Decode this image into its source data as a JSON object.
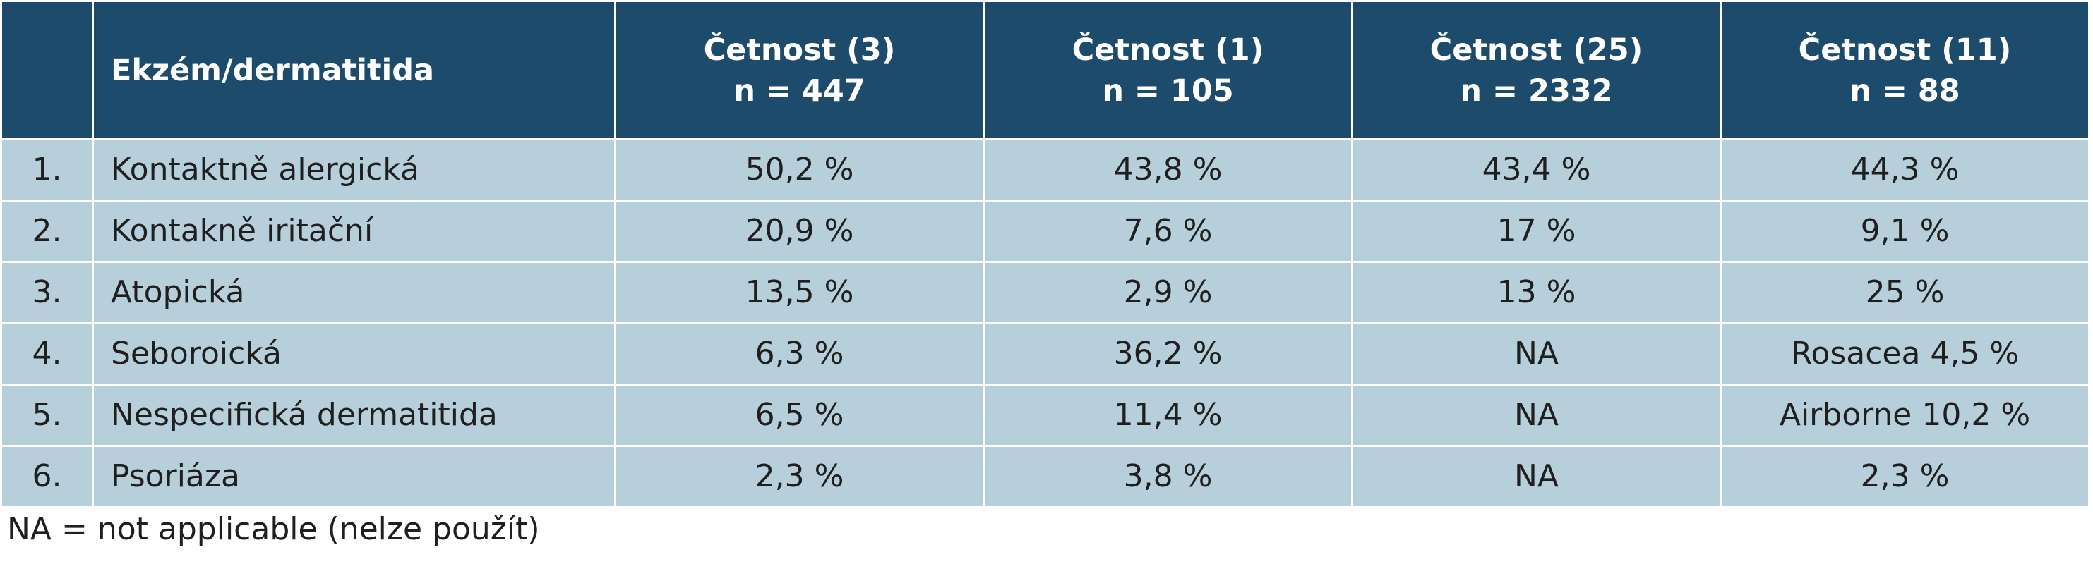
{
  "colors": {
    "header_bg": "#1d4b6c",
    "header_text": "#ffffff",
    "row_bg": "#b7cedb",
    "row_text": "#1f1f1f",
    "grid_line": "#ffffff"
  },
  "table": {
    "header": {
      "index": "",
      "name": "Ekzém/dermatitida",
      "columns": [
        {
          "line1": "Četnost (3)",
          "line2": "n = 447"
        },
        {
          "line1": "Četnost (1)",
          "line2": "n = 105"
        },
        {
          "line1": "Četnost (25)",
          "line2": "n = 2332"
        },
        {
          "line1": "Četnost (11)",
          "line2": "n = 88"
        }
      ]
    },
    "rows": [
      {
        "index": "1.",
        "name": "Kontaktně alergická",
        "values": [
          "50,2 %",
          "43,8 %",
          "43,4 %",
          "44,3 %"
        ]
      },
      {
        "index": "2.",
        "name": "Kontakně iritační",
        "values": [
          "20,9 %",
          "7,6 %",
          "17 %",
          "9,1 %"
        ]
      },
      {
        "index": "3.",
        "name": "Atopická",
        "values": [
          "13,5 %",
          "2,9 %",
          "13 %",
          "25 %"
        ]
      },
      {
        "index": "4.",
        "name": "Seboroická",
        "values": [
          "6,3 %",
          "36,2 %",
          "NA",
          "Rosacea 4,5 %"
        ]
      },
      {
        "index": "5.",
        "name": "Nespecifická dermatitida",
        "values": [
          "6,5 %",
          "11,4 %",
          "NA",
          "Airborne 10,2 %"
        ]
      },
      {
        "index": "6.",
        "name": "Psoriáza",
        "values": [
          "2,3 %",
          "3,8 %",
          "NA",
          "2,3 %"
        ]
      }
    ]
  },
  "footnote": "NA = not applicable (nelze použít)"
}
